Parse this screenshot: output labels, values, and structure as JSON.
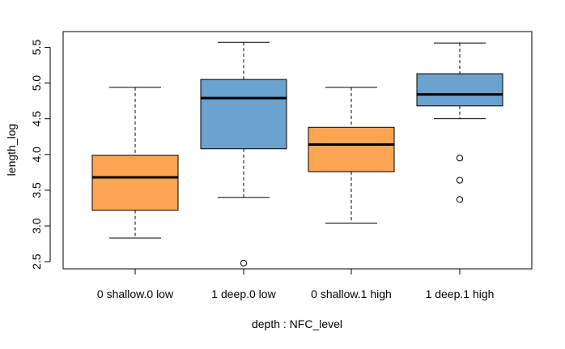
{
  "chart_data": {
    "type": "box",
    "xlabel": "depth : NFC_level",
    "ylabel": "length_log",
    "ylim": [
      2.4,
      5.72
    ],
    "y_ticks": [
      2.5,
      3.0,
      3.5,
      4.0,
      4.5,
      5.0,
      5.5
    ],
    "y_tick_labels": [
      "2.5",
      "3.0",
      "3.5",
      "4.0",
      "4.5",
      "5.0",
      "5.5"
    ],
    "categories": [
      "0 shallow.0 low",
      "1 deep.0 low",
      "0 shallow.1 high",
      "1 deep.1 high"
    ],
    "boxes": [
      {
        "category": "0 shallow.0 low",
        "whisker_low": 2.83,
        "q1": 3.22,
        "median": 3.68,
        "q3": 3.99,
        "whisker_high": 4.94,
        "outliers": [],
        "color": "#FDA552"
      },
      {
        "category": "1 deep.0 low",
        "whisker_low": 3.4,
        "q1": 4.08,
        "median": 4.79,
        "q3": 5.05,
        "whisker_high": 5.57,
        "outliers": [
          2.48
        ],
        "color": "#6BA2CE"
      },
      {
        "category": "0 shallow.1 high",
        "whisker_low": 3.04,
        "q1": 3.76,
        "median": 4.14,
        "q3": 4.38,
        "whisker_high": 4.94,
        "outliers": [],
        "color": "#FDA552"
      },
      {
        "category": "1 deep.1 high",
        "whisker_low": 4.5,
        "q1": 4.68,
        "median": 4.84,
        "q3": 5.13,
        "whisker_high": 5.56,
        "outliers": [
          3.95,
          3.64,
          3.37
        ],
        "color": "#6BA2CE"
      }
    ],
    "grid": false,
    "legend": "none"
  }
}
